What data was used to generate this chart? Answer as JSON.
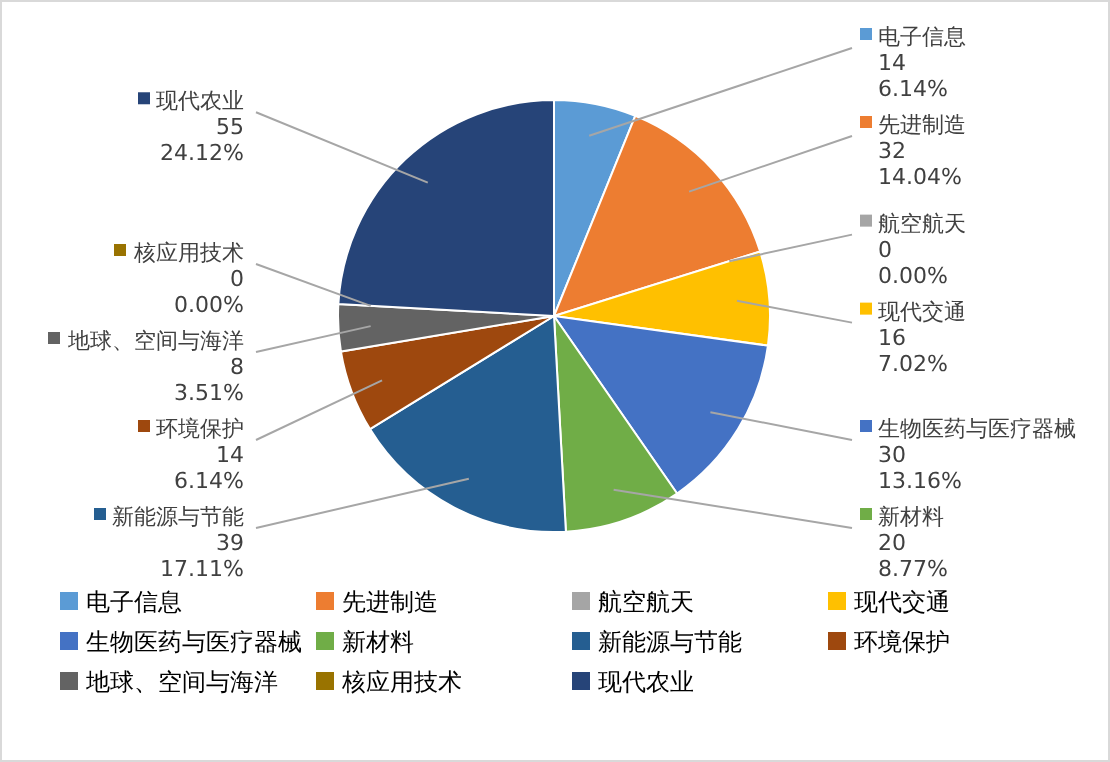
{
  "chart_data": {
    "type": "pie",
    "categories": [
      "电子信息",
      "先进制造",
      "航空航天",
      "现代交通",
      "生物医药与医疗器械",
      "新材料",
      "新能源与节能",
      "环境保护",
      "地球、空间与海洋",
      "核应用技术",
      "现代农业"
    ],
    "values": [
      14,
      32,
      0,
      16,
      30,
      20,
      39,
      14,
      8,
      0,
      55
    ],
    "colors": [
      "#5b9bd5",
      "#ed7d31",
      "#a5a5a5",
      "#ffc000",
      "#4472c4",
      "#70ad47",
      "#255e91",
      "#9e480e",
      "#636363",
      "#997300",
      "#264478"
    ],
    "value_labels": [
      "14\n6.14%",
      "32\n14.04%",
      "0\n0.00%",
      "16\n7.02%",
      "30\n13.16%",
      "20\n8.77%",
      "39\n17.11%",
      "14\n6.14%",
      "8\n3.51%",
      "0\n0.00%",
      "55\n24.12%"
    ],
    "legend": "bottom"
  }
}
